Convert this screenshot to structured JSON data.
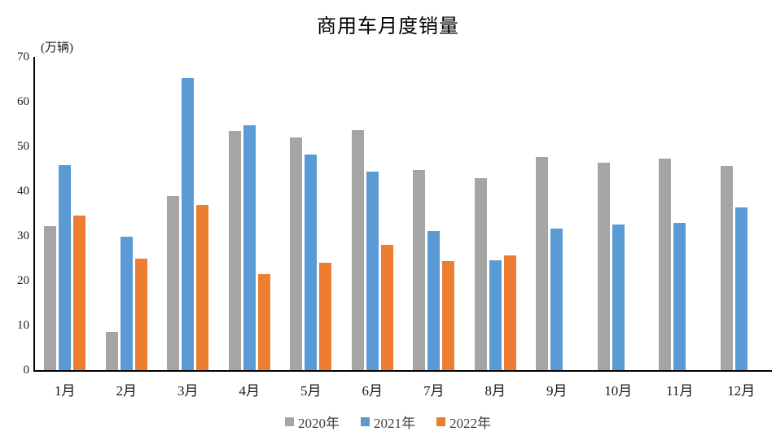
{
  "chart_data": {
    "type": "bar",
    "title": "商用车月度销量",
    "ylabel": "(万辆)",
    "xlabel": "",
    "categories": [
      "1月",
      "2月",
      "3月",
      "4月",
      "5月",
      "6月",
      "7月",
      "8月",
      "9月",
      "10月",
      "11月",
      "12月"
    ],
    "series": [
      {
        "name": "2020年",
        "color": "#a5a5a5",
        "values": [
          32.2,
          8.6,
          38.9,
          53.4,
          52.0,
          53.7,
          44.7,
          43.0,
          47.6,
          46.3,
          47.3,
          45.6
        ]
      },
      {
        "name": "2021年",
        "color": "#5b9bd5",
        "values": [
          45.9,
          29.8,
          65.2,
          54.8,
          48.2,
          44.4,
          31.1,
          24.6,
          31.6,
          32.5,
          32.9,
          36.3
        ]
      },
      {
        "name": "2022年",
        "color": "#ed7d31",
        "values": [
          34.6,
          24.9,
          36.9,
          21.4,
          24.0,
          28.0,
          24.4,
          25.6,
          null,
          null,
          null,
          null
        ]
      }
    ],
    "ylim": [
      0,
      70
    ],
    "yticks": [
      0,
      10,
      20,
      30,
      40,
      50,
      60,
      70
    ],
    "grid": false,
    "legend_position": "bottom",
    "axis_color": "#000000",
    "text_color": "#1a1a1a"
  }
}
